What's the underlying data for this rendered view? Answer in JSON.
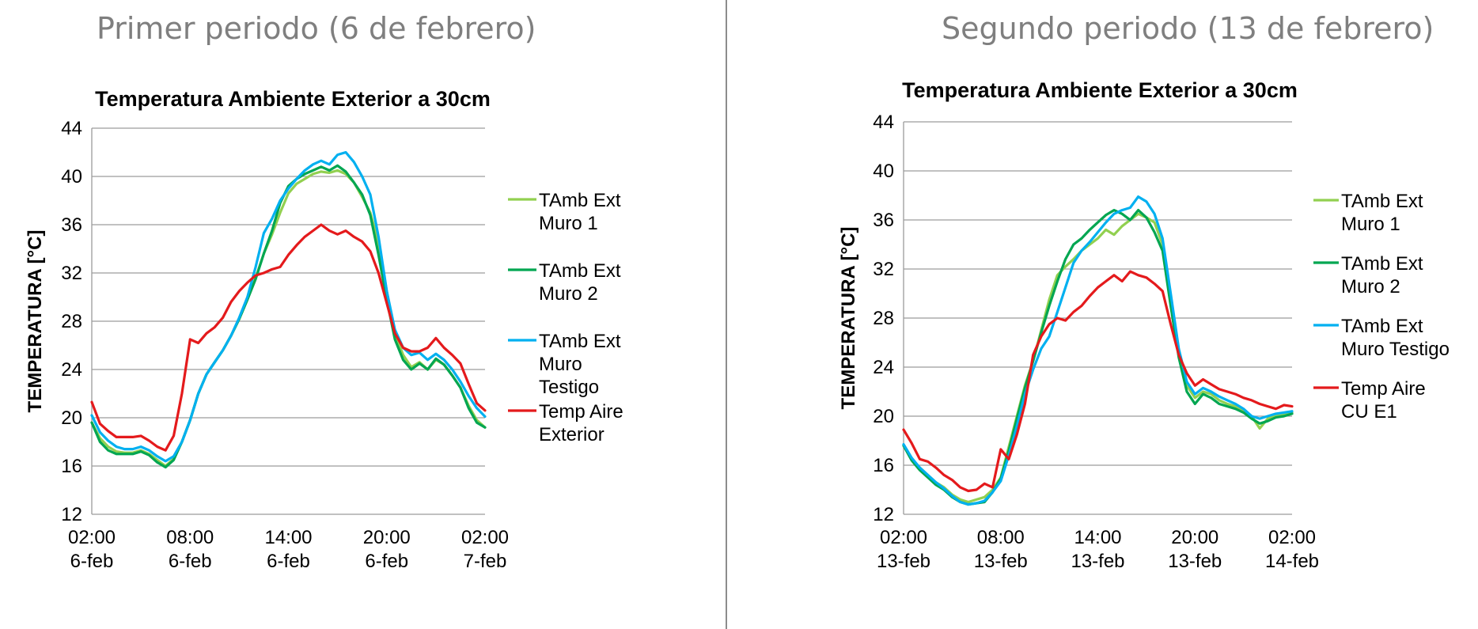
{
  "headings": {
    "left": "Primer periodo (6 de febrero)",
    "right": "Segundo periodo (13 de febrero)"
  },
  "chart_data": [
    {
      "type": "line",
      "title": "Temperatura Ambiente Exterior a 30cm",
      "xlabel": "",
      "ylabel": "TEMPERATURA [°C]",
      "ylim": [
        12,
        44
      ],
      "yticks": [
        12,
        16,
        20,
        24,
        28,
        32,
        36,
        40,
        44
      ],
      "xlim": [
        0,
        24
      ],
      "xticks": [
        {
          "x": 0,
          "lines": [
            "02:00",
            "6-feb"
          ]
        },
        {
          "x": 6,
          "lines": [
            "08:00",
            "6-feb"
          ]
        },
        {
          "x": 12,
          "lines": [
            "14:00",
            "6-feb"
          ]
        },
        {
          "x": 18,
          "lines": [
            "20:00",
            "6-feb"
          ]
        },
        {
          "x": 24,
          "lines": [
            "02:00",
            "7-feb"
          ]
        }
      ],
      "x_unit": "hours since 02:00 6-feb",
      "grid": "horizontal",
      "legend_position": "right",
      "x": [
        0,
        0.5,
        1,
        1.5,
        2,
        2.5,
        3,
        3.5,
        4,
        4.5,
        5,
        5.5,
        6,
        6.5,
        7,
        7.5,
        8,
        8.5,
        9,
        9.5,
        10,
        10.5,
        11,
        11.5,
        12,
        12.5,
        13,
        13.5,
        14,
        14.5,
        15,
        15.5,
        16,
        16.5,
        17,
        17.5,
        18,
        18.5,
        19,
        19.5,
        20,
        20.5,
        21,
        21.5,
        22,
        22.5,
        23,
        23.5,
        24
      ],
      "series": [
        {
          "name": "TAmb Ext Muro 1",
          "color": "#92d050",
          "values": [
            19.6,
            18.3,
            17.6,
            17.2,
            17.1,
            17.1,
            17.3,
            17.0,
            16.5,
            16.0,
            16.6,
            18.0,
            19.8,
            22.0,
            23.6,
            24.6,
            25.6,
            26.8,
            28.2,
            29.8,
            31.6,
            33.6,
            35.2,
            37.0,
            38.6,
            39.4,
            39.8,
            40.2,
            40.4,
            40.3,
            40.5,
            40.2,
            39.5,
            38.3,
            37.0,
            34.5,
            30.5,
            27.0,
            25.2,
            24.2,
            24.6,
            24.0,
            24.8,
            24.4,
            23.5,
            22.5,
            21.0,
            19.8,
            19.2
          ]
        },
        {
          "name": "TAmb Ext Muro 2",
          "color": "#00a651",
          "values": [
            19.6,
            18.0,
            17.3,
            17.0,
            17.0,
            17.0,
            17.2,
            16.9,
            16.3,
            15.9,
            16.5,
            18.0,
            19.8,
            22.0,
            23.6,
            24.6,
            25.6,
            26.8,
            28.2,
            29.8,
            31.5,
            33.6,
            35.5,
            37.8,
            39.2,
            39.8,
            40.2,
            40.5,
            40.8,
            40.5,
            40.9,
            40.4,
            39.5,
            38.5,
            36.8,
            33.5,
            29.8,
            26.5,
            24.8,
            24.0,
            24.5,
            24.0,
            24.9,
            24.4,
            23.5,
            22.5,
            20.8,
            19.6,
            19.2
          ]
        },
        {
          "name": "TAmb Ext Muro Testigo",
          "color": "#00b0f0",
          "values": [
            20.2,
            18.8,
            18.1,
            17.6,
            17.4,
            17.4,
            17.6,
            17.3,
            16.8,
            16.4,
            16.8,
            18.0,
            19.8,
            22.0,
            23.6,
            24.6,
            25.6,
            26.8,
            28.3,
            30.0,
            32.5,
            35.3,
            36.5,
            38.0,
            39.0,
            39.8,
            40.5,
            41.0,
            41.3,
            41.0,
            41.8,
            42.0,
            41.2,
            40.0,
            38.5,
            35.0,
            30.5,
            27.3,
            25.8,
            25.2,
            25.4,
            24.8,
            25.3,
            24.8,
            24.0,
            23.0,
            21.8,
            20.8,
            20.1
          ]
        },
        {
          "name": "Temp Aire Exterior",
          "color": "#e41a1c",
          "values": [
            21.3,
            19.5,
            18.9,
            18.4,
            18.4,
            18.4,
            18.5,
            18.1,
            17.6,
            17.3,
            18.5,
            22.0,
            26.5,
            26.2,
            27.0,
            27.5,
            28.3,
            29.6,
            30.5,
            31.2,
            31.8,
            32.0,
            32.3,
            32.5,
            33.5,
            34.3,
            35.0,
            35.5,
            36.0,
            35.5,
            35.2,
            35.5,
            35.0,
            34.6,
            33.8,
            32.0,
            29.5,
            27.0,
            25.8,
            25.5,
            25.5,
            25.8,
            26.6,
            25.8,
            25.2,
            24.5,
            22.8,
            21.2,
            20.6
          ]
        }
      ]
    },
    {
      "type": "line",
      "title": "Temperatura Ambiente Exterior a 30cm",
      "xlabel": "",
      "ylabel": "TEMPERATURA [°C]",
      "ylim": [
        12,
        44
      ],
      "yticks": [
        12,
        16,
        20,
        24,
        28,
        32,
        36,
        40,
        44
      ],
      "xlim": [
        0,
        24
      ],
      "xticks": [
        {
          "x": 0,
          "lines": [
            "02:00",
            "13-feb"
          ]
        },
        {
          "x": 6,
          "lines": [
            "08:00",
            "13-feb"
          ]
        },
        {
          "x": 12,
          "lines": [
            "14:00",
            "13-feb"
          ]
        },
        {
          "x": 18,
          "lines": [
            "20:00",
            "13-feb"
          ]
        },
        {
          "x": 24,
          "lines": [
            "02:00",
            "14-feb"
          ]
        }
      ],
      "x_unit": "hours since 02:00 13-feb",
      "grid": "horizontal",
      "legend_position": "right",
      "x": [
        0,
        0.5,
        1,
        1.5,
        2,
        2.5,
        3,
        3.5,
        4,
        4.5,
        5,
        5.5,
        6,
        6.5,
        7,
        7.5,
        8,
        8.5,
        9,
        9.5,
        10,
        10.5,
        11,
        11.5,
        12,
        12.5,
        13,
        13.5,
        14,
        14.5,
        15,
        15.5,
        16,
        16.5,
        17,
        17.5,
        18,
        18.5,
        19,
        19.5,
        20,
        20.5,
        21,
        21.5,
        22,
        22.5,
        23,
        23.5,
        24
      ],
      "series": [
        {
          "name": "TAmb Ext Muro 1",
          "color": "#92d050",
          "values": [
            17.6,
            16.5,
            15.8,
            15.2,
            14.6,
            14.2,
            13.6,
            13.2,
            13.0,
            13.2,
            13.4,
            14.0,
            15.0,
            17.5,
            20.0,
            22.5,
            24.5,
            27.0,
            29.5,
            31.5,
            32.2,
            32.8,
            33.5,
            34.0,
            34.5,
            35.2,
            34.8,
            35.5,
            36.0,
            36.5,
            36.2,
            35.8,
            34.0,
            29.5,
            25.0,
            22.5,
            21.5,
            22.0,
            21.8,
            21.3,
            21.0,
            20.8,
            20.5,
            20.0,
            19.0,
            19.8,
            20.0,
            20.1,
            20.3
          ]
        },
        {
          "name": "TAmb Ext Muro 2",
          "color": "#00a651",
          "values": [
            17.6,
            16.4,
            15.6,
            15.0,
            14.4,
            14.0,
            13.4,
            13.0,
            12.8,
            12.9,
            13.0,
            13.8,
            14.9,
            17.2,
            19.8,
            22.3,
            24.5,
            26.8,
            29.0,
            31.0,
            32.8,
            34.0,
            34.5,
            35.2,
            35.8,
            36.4,
            36.8,
            36.5,
            36.0,
            36.8,
            36.2,
            35.0,
            33.5,
            29.0,
            24.8,
            22.0,
            21.0,
            21.8,
            21.5,
            21.0,
            20.8,
            20.6,
            20.3,
            19.8,
            19.4,
            19.6,
            19.9,
            20.0,
            20.2
          ]
        },
        {
          "name": "TAmb Ext Muro Testigo",
          "color": "#00b0f0",
          "values": [
            17.7,
            16.6,
            15.8,
            15.2,
            14.6,
            14.1,
            13.5,
            13.0,
            12.8,
            12.9,
            13.1,
            13.8,
            14.7,
            16.8,
            19.2,
            21.8,
            23.8,
            25.5,
            26.5,
            28.5,
            30.5,
            32.5,
            33.5,
            34.2,
            35.0,
            35.8,
            36.5,
            36.8,
            37.0,
            37.9,
            37.5,
            36.5,
            34.5,
            30.0,
            25.5,
            22.8,
            21.8,
            22.3,
            22.0,
            21.6,
            21.3,
            21.0,
            20.6,
            20.0,
            19.8,
            20.0,
            20.2,
            20.3,
            20.4
          ]
        },
        {
          "name": "Temp Aire CU E1",
          "color": "#e41a1c",
          "values": [
            18.9,
            17.8,
            16.5,
            16.3,
            15.8,
            15.2,
            14.8,
            14.2,
            13.9,
            14.0,
            14.5,
            14.2,
            17.3,
            16.5,
            18.5,
            21.0,
            25.0,
            26.5,
            27.5,
            28.0,
            27.8,
            28.5,
            29.0,
            29.8,
            30.5,
            31.0,
            31.5,
            31.0,
            31.8,
            31.5,
            31.3,
            30.8,
            30.2,
            27.5,
            25.0,
            23.5,
            22.5,
            23.0,
            22.6,
            22.2,
            22.0,
            21.8,
            21.5,
            21.3,
            21.0,
            20.8,
            20.6,
            20.9,
            20.8
          ]
        }
      ]
    }
  ]
}
